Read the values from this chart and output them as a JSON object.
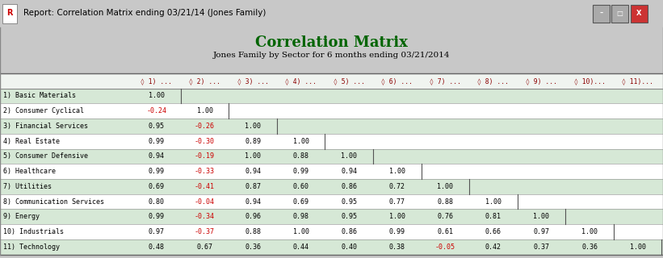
{
  "title": "Correlation Matrix",
  "subtitle": "Jones Family by Sector for 6 months ending 03/21/2014",
  "window_title": "Report: Correlation Matrix ending 03/21/14 (Jones Family)",
  "row_labels": [
    "1) Basic Materials",
    "2) Consumer Cyclical",
    "3) Financial Services",
    "4) Real Estate",
    "5) Consumer Defensive",
    "6) Healthcare",
    "7) Utilities",
    "8) Communication Services",
    "9) Energy",
    "10) Industrials",
    "11) Technology"
  ],
  "col_headers": [
    "◊ 1) ...",
    "◊ 2) ...",
    "◊ 3) ...",
    "◊ 4) ...",
    "◊ 5) ...",
    "◊ 6) ...",
    "◊ 7) ...",
    "◊ 8) ...",
    "◊ 9) ...",
    "◊ 10)...",
    "◊ 11)..."
  ],
  "matrix": [
    [
      1.0,
      null,
      null,
      null,
      null,
      null,
      null,
      null,
      null,
      null,
      null
    ],
    [
      -0.24,
      1.0,
      null,
      null,
      null,
      null,
      null,
      null,
      null,
      null,
      null
    ],
    [
      0.95,
      -0.26,
      1.0,
      null,
      null,
      null,
      null,
      null,
      null,
      null,
      null
    ],
    [
      0.99,
      -0.3,
      0.89,
      1.0,
      null,
      null,
      null,
      null,
      null,
      null,
      null
    ],
    [
      0.94,
      -0.19,
      1.0,
      0.88,
      1.0,
      null,
      null,
      null,
      null,
      null,
      null
    ],
    [
      0.99,
      -0.33,
      0.94,
      0.99,
      0.94,
      1.0,
      null,
      null,
      null,
      null,
      null
    ],
    [
      0.69,
      -0.41,
      0.87,
      0.6,
      0.86,
      0.72,
      1.0,
      null,
      null,
      null,
      null
    ],
    [
      0.8,
      -0.04,
      0.94,
      0.69,
      0.95,
      0.77,
      0.88,
      1.0,
      null,
      null,
      null
    ],
    [
      0.99,
      -0.34,
      0.96,
      0.98,
      0.95,
      1.0,
      0.76,
      0.81,
      1.0,
      null,
      null
    ],
    [
      0.97,
      -0.37,
      0.88,
      1.0,
      0.86,
      0.99,
      0.61,
      0.66,
      0.97,
      1.0,
      null
    ],
    [
      0.48,
      0.67,
      0.36,
      0.44,
      0.4,
      0.38,
      -0.05,
      0.42,
      0.37,
      0.36,
      1.0
    ]
  ],
  "negative_color": "#CC0000",
  "positive_color": "#000000",
  "title_color": "#006400",
  "subtitle_color": "#000000",
  "bg_color": "#F0F4F0",
  "window_bg": "#C8C8C8",
  "table_bg_odd": "#D6E8D6",
  "table_bg_even": "#FFFFFF",
  "header_bg": "#F0F4F0",
  "border_color": "#888888",
  "col_header_color": "#8B0000",
  "titlebar_color": "#B0C8DC"
}
